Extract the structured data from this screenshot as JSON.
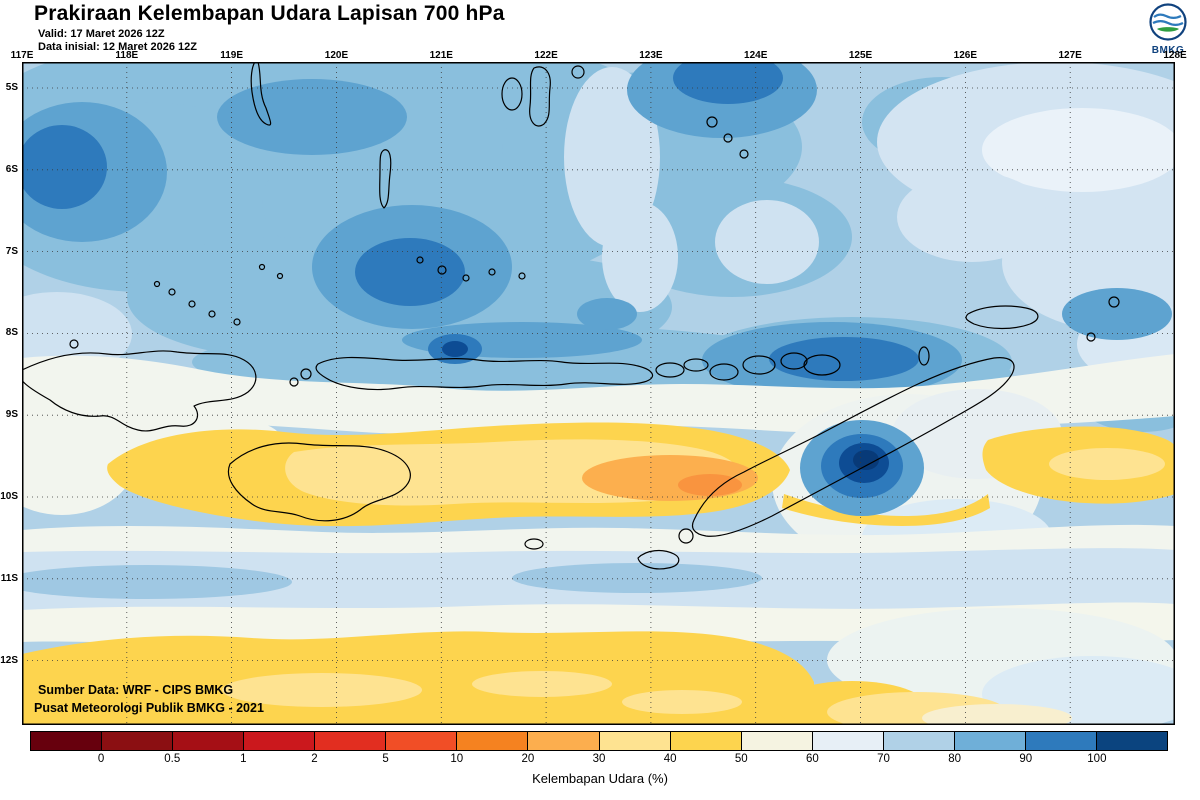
{
  "header": {
    "title": "Prakiraan Kelembapan Udara Lapisan 700 hPa",
    "valid_line": "Valid: 17 Maret 2026 12Z",
    "init_line": "Data inisial: 12 Maret 2026 12Z",
    "logo_text": "BMKG"
  },
  "map": {
    "lon_labels": [
      "117E",
      "118E",
      "119E",
      "120E",
      "121E",
      "122E",
      "123E",
      "124E",
      "125E",
      "126E",
      "127E",
      "128E"
    ],
    "lat_labels": [
      "5S",
      "6S",
      "7S",
      "8S",
      "9S",
      "10S",
      "11S",
      "12S"
    ],
    "source_line1": "Sumber Data: WRF - CIPS BMKG",
    "source_line2": "Pusat Meteorologi Publik BMKG - 2021"
  },
  "colorbar": {
    "caption": "Kelembapan Udara (%)",
    "tick_labels": [
      "0",
      "0.5",
      "1",
      "2",
      "5",
      "10",
      "20",
      "30",
      "40",
      "50",
      "60",
      "70",
      "80",
      "90",
      "100"
    ],
    "cell_colors": [
      "#67000d",
      "#8b0f12",
      "#a50f15",
      "#cb181d",
      "#e22e20",
      "#f14e26",
      "#f58220",
      "#fcae4e",
      "#fee391",
      "#fdd44e",
      "#f5f3e1",
      "#e7eff6",
      "#b0d1e7",
      "#6fafd8",
      "#2e7abc",
      "#0b447f"
    ]
  },
  "chart_data": {
    "type": "heatmap",
    "title": "Prakiraan Kelembapan Udara Lapisan 700 hPa",
    "valid_time": "17 Maret 2026 12Z",
    "initial_time": "12 Maret 2026 12Z",
    "variable": "Kelembapan Udara (%)",
    "level": "700 hPa",
    "x_axis": {
      "label": "longitude",
      "range": [
        "117E",
        "128E"
      ],
      "ticks": [
        "117E",
        "118E",
        "119E",
        "120E",
        "121E",
        "122E",
        "123E",
        "124E",
        "125E",
        "126E",
        "127E",
        "128E"
      ]
    },
    "y_axis": {
      "label": "latitude",
      "range": [
        "5S",
        "12S"
      ],
      "ticks": [
        "5S",
        "6S",
        "7S",
        "8S",
        "9S",
        "10S",
        "11S",
        "12S"
      ]
    },
    "colorbar_levels": [
      0,
      0.5,
      1,
      2,
      5,
      10,
      20,
      30,
      40,
      50,
      60,
      70,
      80,
      90,
      100
    ],
    "colorbar_colors": [
      "#67000d",
      "#8b0f12",
      "#a50f15",
      "#cb181d",
      "#e22e20",
      "#f14e26",
      "#f58220",
      "#fcae4e",
      "#fee391",
      "#fdd44e",
      "#f5f3e1",
      "#e7eff6",
      "#b0d1e7",
      "#6fafd8",
      "#2e7abc",
      "#0b447f"
    ],
    "grid": "dotted 1-degree graticule",
    "legend_position": "bottom",
    "notable_features": [
      {
        "region": "area north of the island chain, 5S-8.5S, most of map width",
        "humidity_pct": "70-100"
      },
      {
        "region": "local maxima cores near 117E 6S, 120.7E 7S, 123.7E 5S, 124.5E 8.3S",
        "humidity_pct": "90-100+"
      },
      {
        "region": "dry band ~9S-10.5S spanning 118E-124.5E",
        "humidity_pct": "40-50 outer band, 30-40 interior, 20-30 core near 122.5E-123.5E 9.8S"
      },
      {
        "region": "very humid small cell near 125E 9.5S (east of Timor)",
        "humidity_pct": "90-100+"
      },
      {
        "region": "band ~10.5S-11.5S",
        "humidity_pct": "60-80"
      },
      {
        "region": "southern dry band south of ~12S from 117E to ~124.5E",
        "humidity_pct": "30-50"
      },
      {
        "region": "dry band segment near right edge 126.2E-128E around 9.5S-10.2S",
        "humidity_pct": "40-50"
      }
    ]
  }
}
